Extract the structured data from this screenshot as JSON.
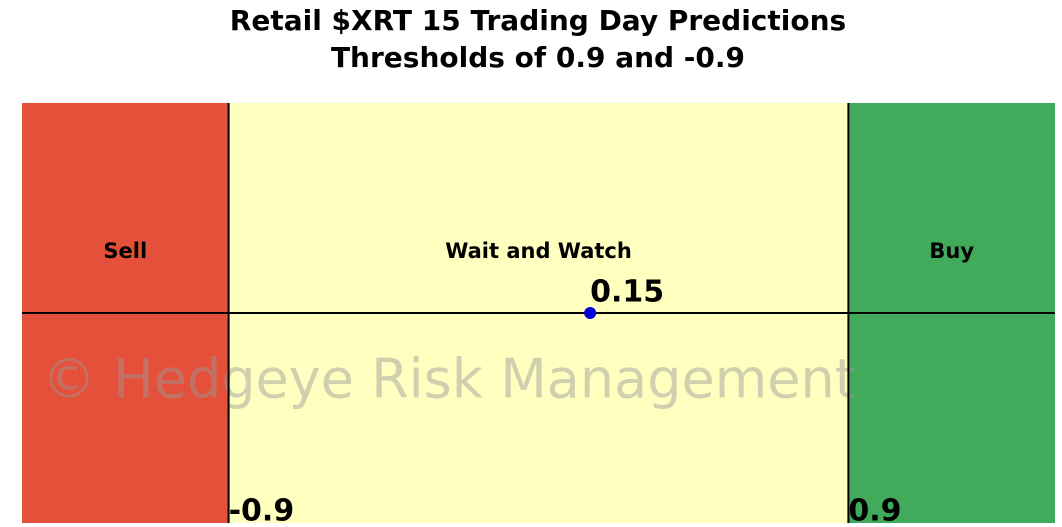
{
  "chart_data": {
    "type": "gauge",
    "title": [
      "Retail $XRT 15 Trading Day Predictions",
      "Thresholds of 0.9 and -0.9"
    ],
    "xlim": [
      -1.5,
      1.5
    ],
    "zones": [
      {
        "name": "Sell",
        "color": "#e5503a"
      },
      {
        "name": "Wait and Watch",
        "color": "#ffffc0"
      },
      {
        "name": "Buy",
        "color": "#41aa5b"
      }
    ],
    "thresholds": [
      -0.9,
      0.9
    ],
    "value": 0.15,
    "point_color": "#0000dd",
    "watermark": "© Hedgeye Risk Management"
  }
}
